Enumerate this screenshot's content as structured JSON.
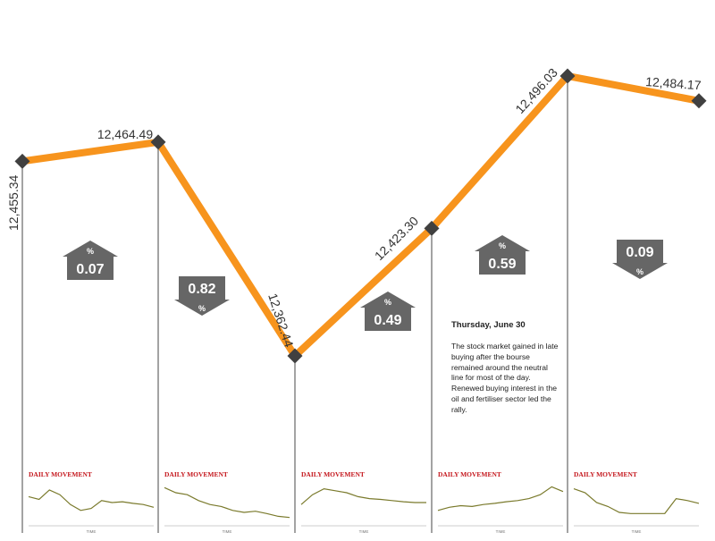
{
  "chart_data": {
    "type": "line",
    "values": [
      12455.34,
      12464.49,
      12362.44,
      12423.3,
      12496.03,
      12484.17
    ],
    "value_labels": [
      "12,455.34",
      "12,464.49",
      "12,362.44",
      "12,423.30",
      "12,496.03",
      "12,484.17"
    ],
    "changes": [
      {
        "direction": "up",
        "text": "0.07",
        "unit": "%"
      },
      {
        "direction": "down",
        "text": "0.82",
        "unit": "%"
      },
      {
        "direction": "up",
        "text": "0.49",
        "unit": "%"
      },
      {
        "direction": "up",
        "text": "0.59",
        "unit": "%"
      },
      {
        "direction": "down",
        "text": "0.09",
        "unit": "%"
      }
    ],
    "daily_movement_label": "DAILY MOVEMENT",
    "daily_axis_label": "TIME",
    "daily_movement_shape": [
      [
        0.35,
        0.42,
        0.18,
        0.3,
        0.55,
        0.7,
        0.65,
        0.45,
        0.5,
        0.48,
        0.52,
        0.55,
        0.62
      ],
      [
        0.12,
        0.25,
        0.3,
        0.45,
        0.55,
        0.6,
        0.7,
        0.75,
        0.72,
        0.78,
        0.85,
        0.88
      ],
      [
        0.55,
        0.3,
        0.15,
        0.2,
        0.25,
        0.35,
        0.4,
        0.42,
        0.45,
        0.48,
        0.5,
        0.5
      ],
      [
        0.7,
        0.62,
        0.58,
        0.6,
        0.55,
        0.52,
        0.48,
        0.45,
        0.4,
        0.3,
        0.1,
        0.22
      ],
      [
        0.15,
        0.25,
        0.5,
        0.6,
        0.75,
        0.78,
        0.78,
        0.78,
        0.78,
        0.4,
        0.45,
        0.52
      ]
    ],
    "colors": {
      "line": "#f7941d",
      "marker": "#404040",
      "badge": "#666666",
      "mini_line": "#7a7a2c",
      "mini_label": "#c4161c"
    }
  },
  "note": {
    "title": "Thursday, June 30",
    "body": "The stock market gained in late buying after the bourse remained around the neutral line for most of the day. Renewed buying interest in the oil and fertiliser sector led the rally."
  }
}
